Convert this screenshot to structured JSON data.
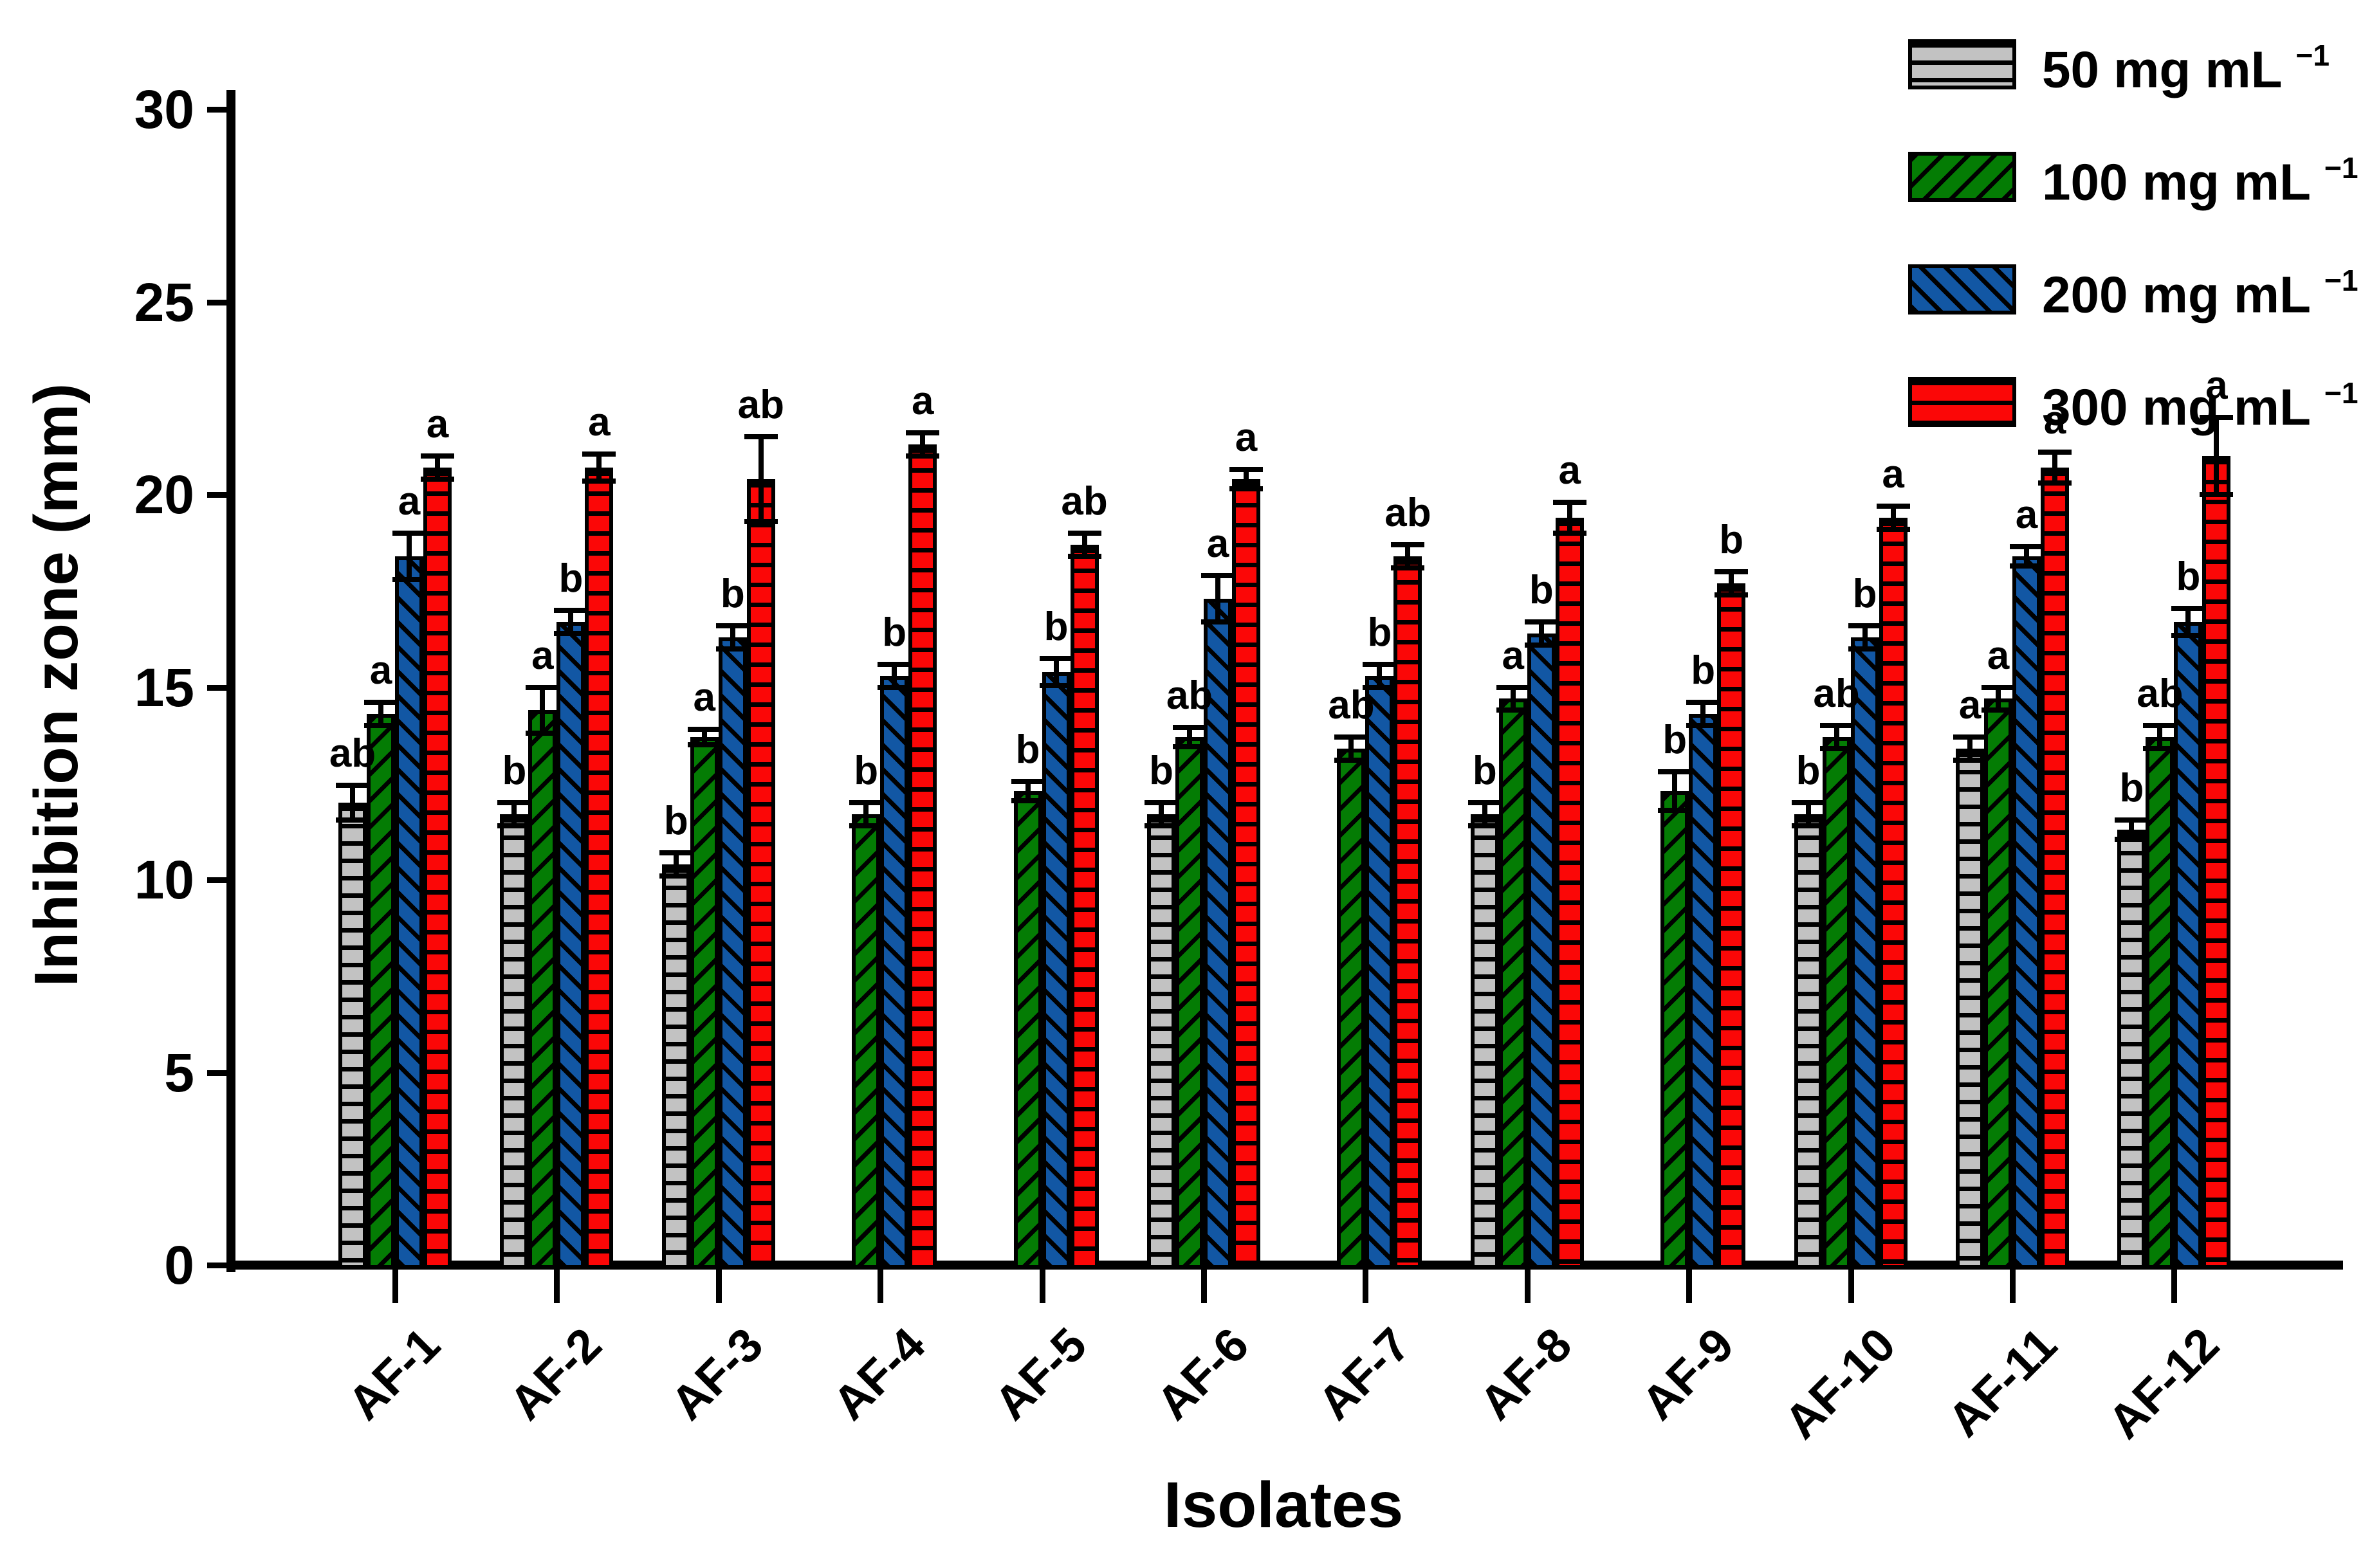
{
  "axes": {
    "ylabel": "Inhibition zone (mm)",
    "xlabel": "Isolates",
    "ylim": [
      0,
      30
    ],
    "yticks": [
      0,
      5,
      10,
      15,
      20,
      25,
      30
    ]
  },
  "legend": {
    "items": [
      {
        "text": "50 mg mL",
        "sup": "−1"
      },
      {
        "text": "100 mg mL",
        "sup": "−1"
      },
      {
        "text": "200 mg mL",
        "sup": "−1"
      },
      {
        "text": "300 mg mL",
        "sup": "−1"
      }
    ]
  },
  "chart_data": {
    "type": "bar",
    "title": "",
    "xlabel": "Isolates",
    "ylabel": "Inhibition zone (mm)",
    "ylim": [
      0,
      30
    ],
    "yticks": [
      0,
      5,
      10,
      15,
      20,
      25,
      30
    ],
    "grid": false,
    "legend_position": "top-right",
    "error_bars": "symmetric with caps",
    "annotation_style": "significance letters above error bars",
    "categories": [
      "AF-1",
      "AF-2",
      "AF-3",
      "AF-4",
      "AF-5",
      "AF-6",
      "AF-7",
      "AF-8",
      "AF-9",
      "AF-10",
      "AF-11",
      "AF-12"
    ],
    "series": [
      {
        "name": "50 mg mL-1",
        "color": "#c2c2c2",
        "hatch": "horizontal",
        "values": [
          12.0,
          11.7,
          10.4,
          null,
          null,
          11.7,
          null,
          11.7,
          null,
          11.7,
          13.4,
          11.3
        ],
        "errors": [
          0.45,
          0.3,
          0.3,
          null,
          null,
          0.3,
          null,
          0.3,
          null,
          0.3,
          0.3,
          0.25
        ],
        "letters": [
          "ab",
          "b",
          "b",
          null,
          null,
          "b",
          null,
          "b",
          null,
          "b",
          "a",
          "b"
        ]
      },
      {
        "name": "100 mg mL-1",
        "color": "#047c04",
        "hatch": "diagonal-up",
        "values": [
          14.3,
          14.4,
          13.7,
          11.7,
          12.3,
          13.7,
          13.4,
          14.7,
          12.3,
          13.7,
          14.7,
          13.7
        ],
        "errors": [
          0.3,
          0.6,
          0.2,
          0.3,
          0.25,
          0.25,
          0.3,
          0.3,
          0.5,
          0.3,
          0.3,
          0.3
        ],
        "letters": [
          "a",
          "a",
          "a",
          "b",
          "b",
          "ab",
          "ab",
          "a",
          "b",
          "ab",
          "a",
          "ab"
        ]
      },
      {
        "name": "200 mg mL-1",
        "color": "#1257a4",
        "hatch": "diagonal-down",
        "values": [
          18.4,
          16.7,
          16.3,
          15.3,
          15.4,
          17.3,
          15.3,
          16.4,
          14.3,
          16.3,
          18.4,
          16.7
        ],
        "errors": [
          0.6,
          0.3,
          0.3,
          0.3,
          0.35,
          0.6,
          0.3,
          0.3,
          0.3,
          0.3,
          0.25,
          0.35
        ],
        "letters": [
          "a",
          "b",
          "b",
          "b",
          "b",
          "a",
          "b",
          "b",
          "b",
          "b",
          "a",
          "b"
        ]
      },
      {
        "name": "300 mg mL-1",
        "color": "#fb0707",
        "hatch": "horizontal",
        "values": [
          20.7,
          20.7,
          20.4,
          21.3,
          18.7,
          20.4,
          18.4,
          19.4,
          17.7,
          19.4,
          20.7,
          21.0
        ],
        "errors": [
          0.3,
          0.35,
          1.1,
          0.3,
          0.3,
          0.25,
          0.3,
          0.4,
          0.3,
          0.3,
          0.4,
          1.0
        ],
        "letters": [
          "a",
          "a",
          "ab",
          "a",
          "ab",
          "a",
          "ab",
          "a",
          "b",
          "a",
          "a",
          "a"
        ]
      }
    ]
  }
}
